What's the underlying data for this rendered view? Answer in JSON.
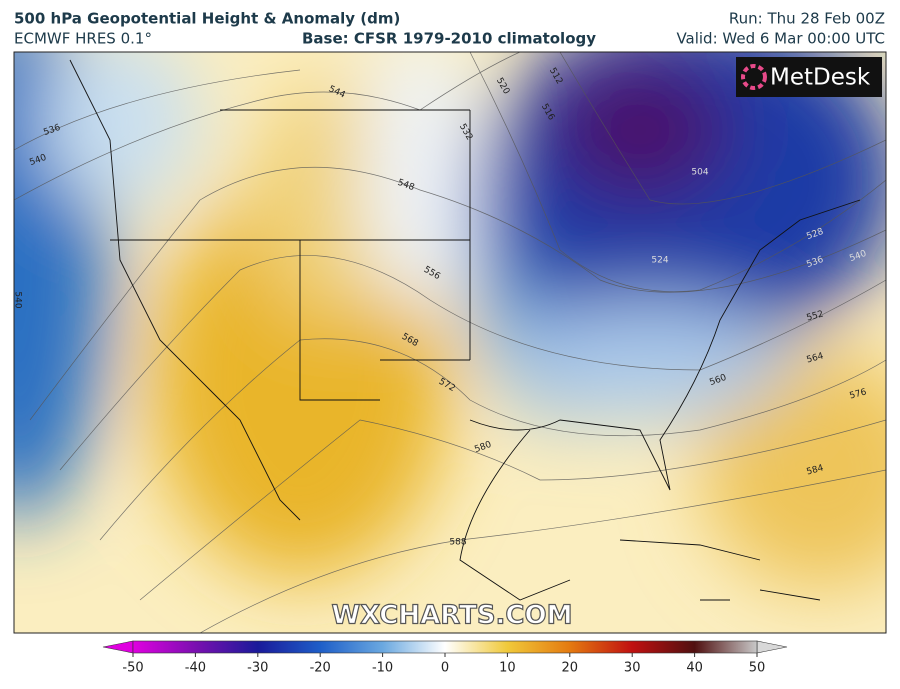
{
  "header": {
    "title": "500 hPa Geopotential Height & Anomaly (dm)",
    "model": "ECMWF HRES 0.1°",
    "base": "Base: CFSR 1979-2010 climatology",
    "run": "Run: Thu 28 Feb 00Z",
    "valid": "Valid: Wed 6 Mar 00:00 UTC"
  },
  "logo": "MetDesk",
  "watermark": "WXCHARTS.COM",
  "contour_labels": [
    544,
    536,
    540,
    532,
    520,
    516,
    512,
    548,
    556,
    568,
    572,
    580,
    588,
    504,
    528,
    536,
    540,
    552,
    564,
    560,
    576,
    584,
    524,
    540
  ],
  "colorbar": {
    "range": [
      -50,
      50
    ],
    "ticks": [
      -50,
      -40,
      -30,
      -20,
      -10,
      0,
      10,
      20,
      30,
      40,
      50
    ]
  }
}
